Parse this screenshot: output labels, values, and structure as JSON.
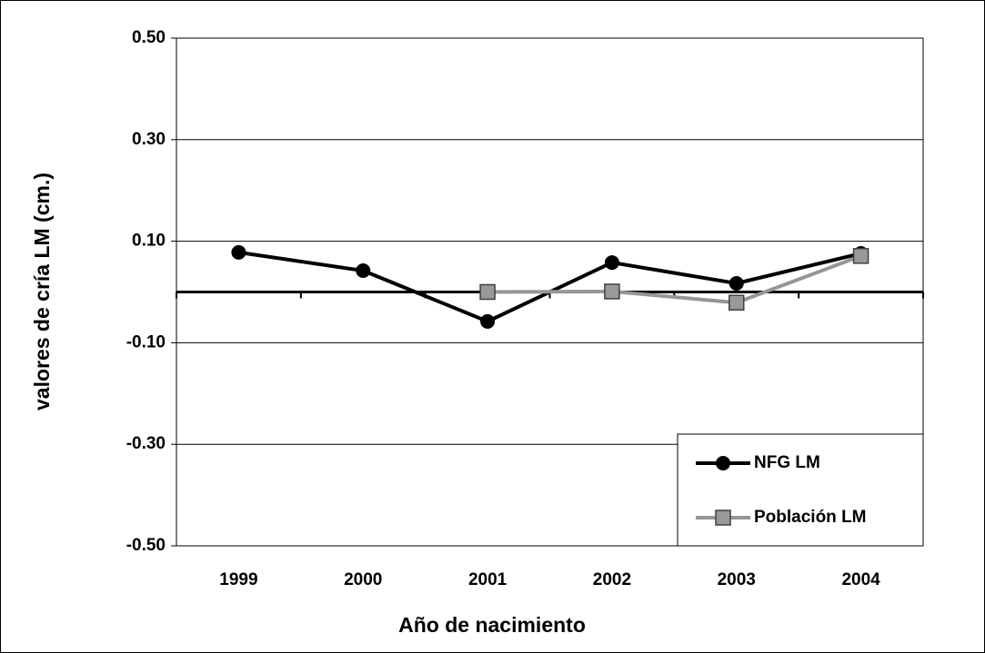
{
  "chart_data": {
    "type": "line",
    "xlabel": "Año de nacimiento",
    "ylabel": "valores de cría LM (cm.)",
    "categories": [
      "1999",
      "2000",
      "2001",
      "2002",
      "2003",
      "2004"
    ],
    "series": [
      {
        "name": "NFG LM",
        "color": "#000000",
        "marker": "circle",
        "values": [
          0.078,
          0.042,
          -0.058,
          0.058,
          0.017,
          0.076
        ]
      },
      {
        "name": "Población LM",
        "color": "#969696",
        "marker": "square",
        "values": [
          null,
          null,
          0.0,
          0.001,
          -0.021,
          0.071
        ]
      }
    ],
    "ylim": [
      -0.5,
      0.5
    ],
    "yticks": [
      {
        "value": -0.5,
        "label": "-0.50"
      },
      {
        "value": -0.3,
        "label": "-0.30"
      },
      {
        "value": -0.1,
        "label": "-0.10"
      },
      {
        "value": 0.1,
        "label": "0.10"
      },
      {
        "value": 0.3,
        "label": "0.30"
      },
      {
        "value": 0.5,
        "label": "0.50"
      }
    ],
    "grid": true,
    "legend": "lower right"
  }
}
